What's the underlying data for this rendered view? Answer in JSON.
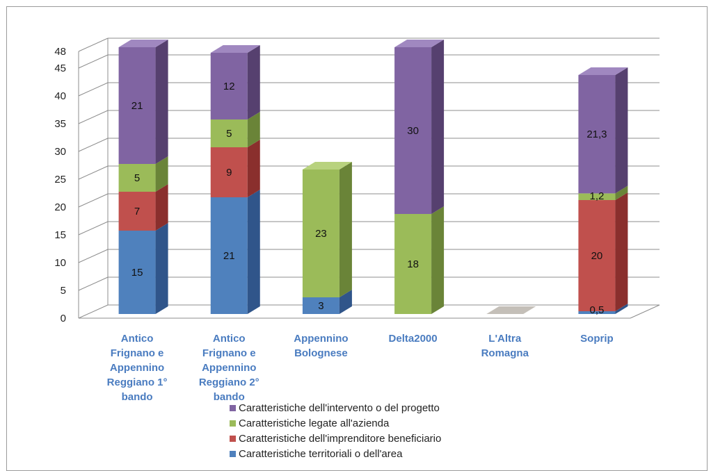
{
  "chart_data": {
    "type": "bar",
    "stacked": true,
    "three_d": true,
    "categories": [
      "Antico Frignano e Appennino Reggiano 1° bando",
      "Antico Frignano e Appennino Reggiano 2° bando",
      "Appennino Bolognese",
      "Delta2000",
      "L'Altra Romagna",
      "Soprip"
    ],
    "category_lines": [
      [
        "Antico",
        "Frignano e",
        "Appennino",
        "Reggiano 1°",
        "bando"
      ],
      [
        "Antico",
        "Frignano e",
        "Appennino",
        "Reggiano 2°",
        "bando"
      ],
      [
        "Appennino",
        "Bolognese"
      ],
      [
        "Delta2000"
      ],
      [
        "L'Altra",
        "Romagna"
      ],
      [
        "Soprip"
      ]
    ],
    "series": [
      {
        "name": "Caratteristiche territoriali o dell'area",
        "color": "#4f81bd",
        "side": "#30558a",
        "top": "#7ba3d6",
        "values": [
          15,
          21,
          3,
          0,
          0,
          0.5
        ],
        "labels": [
          "15",
          "21",
          "3",
          "",
          "",
          "0,5"
        ]
      },
      {
        "name": "Caratteristiche dell'imprenditore beneficiario",
        "color": "#c0504d",
        "side": "#8a2f2d",
        "top": "#d77d7a",
        "values": [
          7,
          9,
          0,
          0,
          0,
          20
        ],
        "labels": [
          "7",
          "9",
          "",
          "",
          "",
          "20"
        ]
      },
      {
        "name": "Caratteristiche legate all'azienda",
        "color": "#9bbb59",
        "side": "#6a8438",
        "top": "#b8d27e",
        "values": [
          5,
          5,
          23,
          18,
          0,
          1.2
        ],
        "labels": [
          "5",
          "5",
          "23",
          "18",
          "",
          "1,2"
        ]
      },
      {
        "name": "Caratteristiche dell'intervento o del progetto",
        "color": "#8064a2",
        "side": "#56406f",
        "top": "#a088c0",
        "values": [
          21,
          12,
          0,
          30,
          0,
          21.3
        ],
        "labels": [
          "21",
          "12",
          "",
          "30",
          "",
          "21,3"
        ]
      }
    ],
    "y_ticks": [
      0,
      5,
      10,
      15,
      20,
      25,
      30,
      35,
      40,
      45,
      48
    ],
    "ylim": [
      0,
      48
    ],
    "grid": true,
    "legend_position": "bottom",
    "legend_order": [
      3,
      2,
      1,
      0
    ],
    "empty_category_marker_color": "#c4bfb8",
    "title": "",
    "xlabel": "",
    "ylabel": ""
  }
}
